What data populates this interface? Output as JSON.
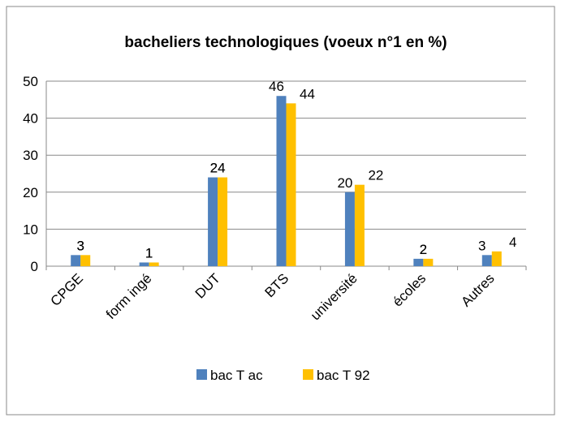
{
  "chart_data": {
    "type": "bar",
    "title": "bacheliers technologiques (voeux n°1 en %)",
    "categories": [
      "CPGE",
      "form ingé",
      "DUT",
      "BTS",
      "université",
      "écoles",
      "Autres"
    ],
    "series": [
      {
        "name": "bac T ac",
        "color": "#4f81bd",
        "values": [
          3,
          1,
          24,
          46,
          20,
          2,
          3
        ]
      },
      {
        "name": "bac T 92",
        "color": "#ffc000",
        "values": [
          3,
          1,
          24,
          44,
          22,
          2,
          4
        ]
      }
    ],
    "ylim": [
      0,
      50
    ],
    "yticks": [
      0,
      10,
      20,
      30,
      40,
      50
    ],
    "grid": true,
    "legend": "bottom"
  }
}
